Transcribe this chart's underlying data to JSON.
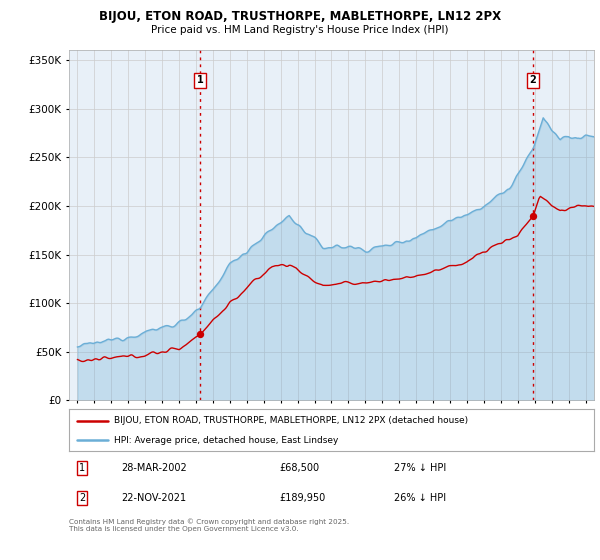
{
  "title": "BIJOU, ETON ROAD, TRUSTHORPE, MABLETHORPE, LN12 2PX",
  "subtitle": "Price paid vs. HM Land Registry's House Price Index (HPI)",
  "ylabel_ticks": [
    "£0",
    "£50K",
    "£100K",
    "£150K",
    "£200K",
    "£250K",
    "£300K",
    "£350K"
  ],
  "ytick_values": [
    0,
    50000,
    100000,
    150000,
    200000,
    250000,
    300000,
    350000
  ],
  "ylim": [
    0,
    360000
  ],
  "xlim": [
    1994.5,
    2025.5
  ],
  "hpi_color": "#6baed6",
  "hpi_fill_color": "#ddeeff",
  "price_color": "#cc0000",
  "vline_color": "#cc0000",
  "sale1_x": 2002.23,
  "sale1_price": 68500,
  "sale2_x": 2021.89,
  "sale2_price": 189950,
  "legend_line1": "BIJOU, ETON ROAD, TRUSTHORPE, MABLETHORPE, LN12 2PX (detached house)",
  "legend_line2": "HPI: Average price, detached house, East Lindsey",
  "footnote": "Contains HM Land Registry data © Crown copyright and database right 2025.\nThis data is licensed under the Open Government Licence v3.0.",
  "background_color": "#ffffff",
  "grid_color": "#cccccc",
  "chart_bg_color": "#e8f0f8"
}
